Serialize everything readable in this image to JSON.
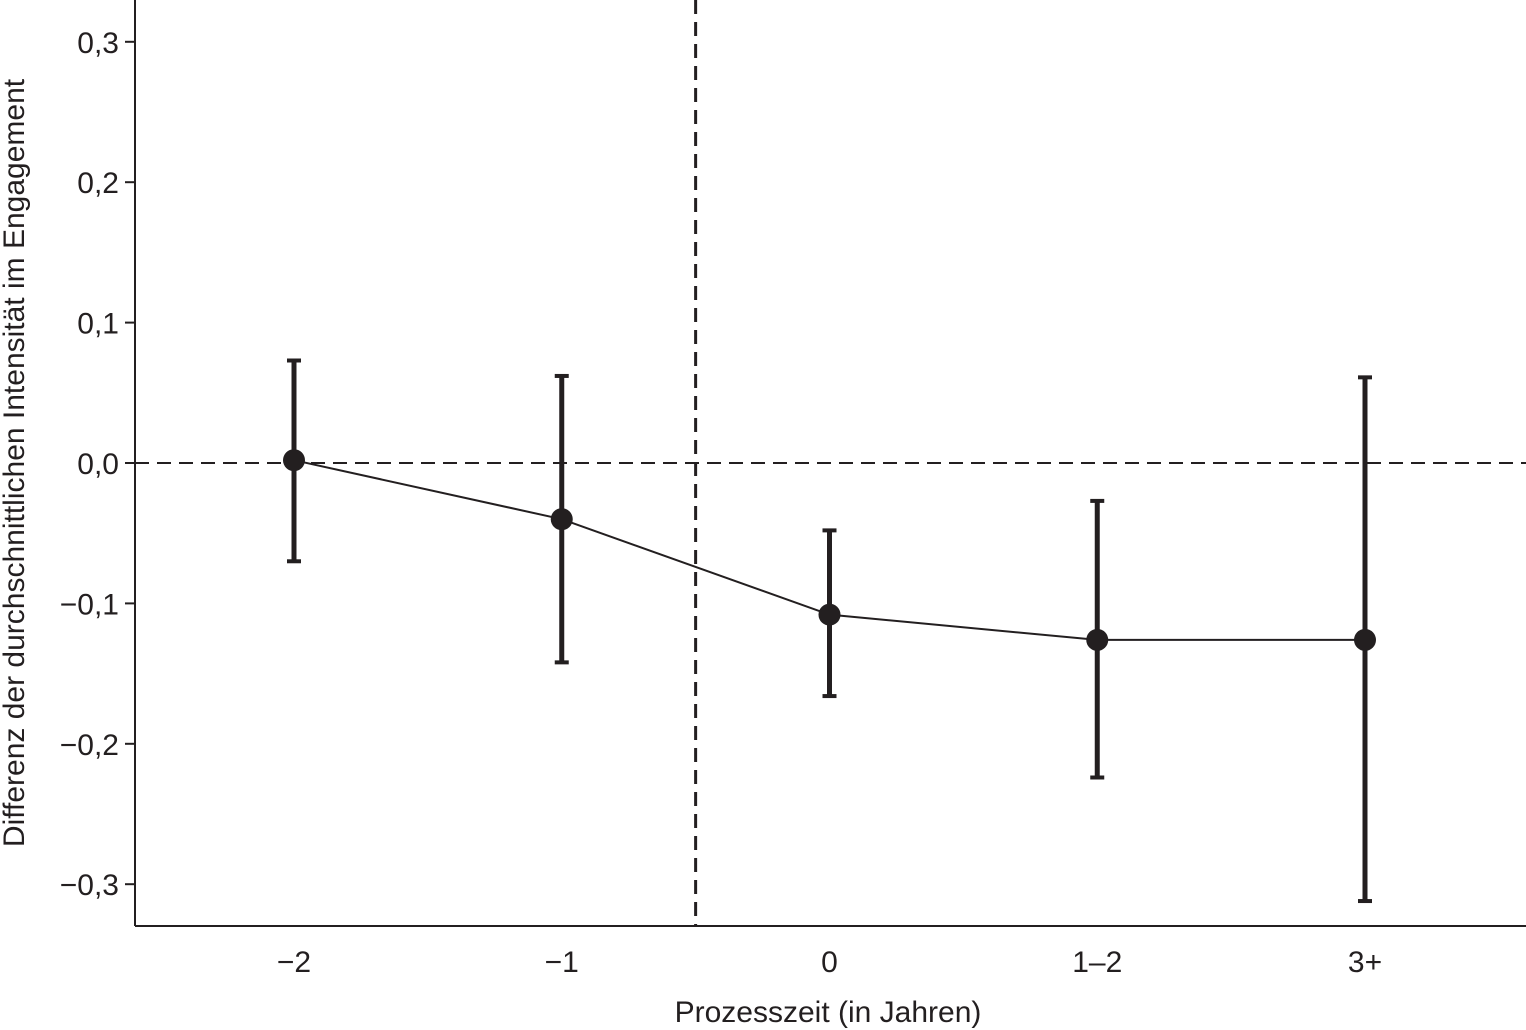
{
  "chart_data": {
    "type": "line",
    "xlabel": "Prozesszeit (in Jahren)",
    "ylabel": "Differenz der durchschnittlichen Intensität im Engagement",
    "categories": [
      "−2",
      "−1",
      "0",
      "1–2",
      "3+"
    ],
    "ylim": [
      -0.33,
      0.33
    ],
    "yticks": [
      {
        "value": 0.3,
        "label": "0,3"
      },
      {
        "value": 0.2,
        "label": "0,2"
      },
      {
        "value": 0.1,
        "label": "0,1"
      },
      {
        "value": 0.0,
        "label": "0,0"
      },
      {
        "value": -0.1,
        "label": "−0,1"
      },
      {
        "value": -0.2,
        "label": "−0,2"
      },
      {
        "value": -0.3,
        "label": "−0,3"
      }
    ],
    "series": [
      {
        "values": [
          0.002,
          -0.04,
          -0.108,
          -0.126,
          -0.126
        ],
        "ci_lower": [
          -0.07,
          -0.142,
          -0.166,
          -0.224,
          -0.312
        ],
        "ci_upper": [
          0.073,
          0.062,
          -0.048,
          -0.027,
          0.061
        ]
      }
    ],
    "reference_lines": {
      "horizontal_y": 0.0,
      "vertical_between_categories": [
        1,
        2
      ]
    },
    "grid": false,
    "colors": {
      "ink": "#231f20"
    }
  }
}
